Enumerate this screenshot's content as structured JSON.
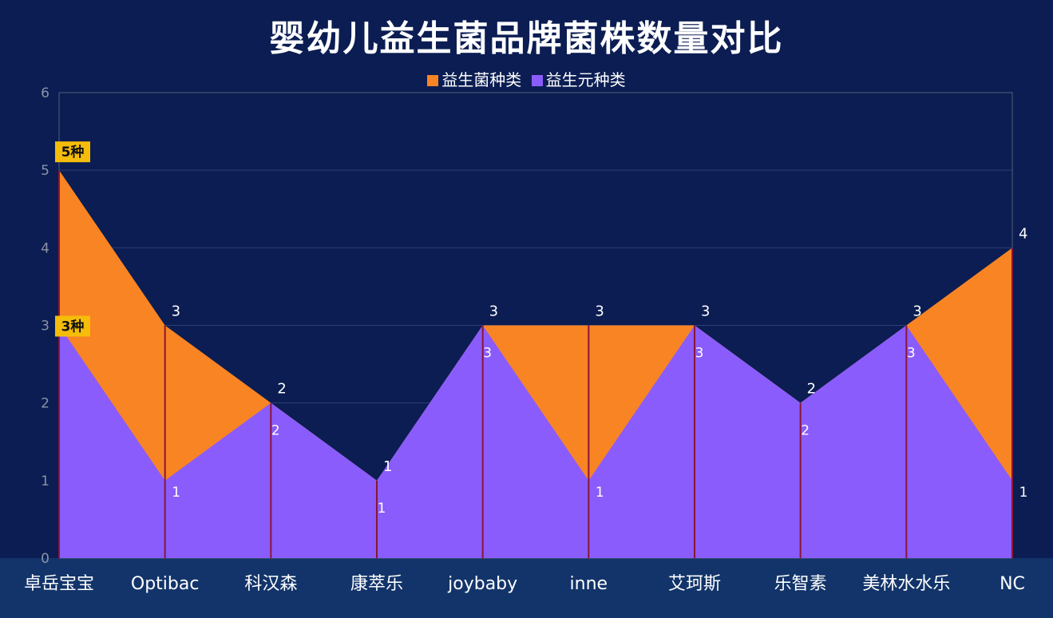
{
  "chart_data": {
    "type": "area",
    "title": "婴幼儿益生菌品牌菌株数量对比",
    "categories": [
      "卓岳宝宝",
      "Optibac",
      "科汉森",
      "康萃乐",
      "joybaby",
      "inne",
      "艾珂斯",
      "乐智素",
      "美林水水乐",
      "NC"
    ],
    "series": [
      {
        "name": "益生菌种类",
        "values": [
          5,
          3,
          2,
          1,
          3,
          3,
          3,
          2,
          3,
          4
        ],
        "color": "#f98424"
      },
      {
        "name": "益生元种类",
        "values": [
          3,
          1,
          2,
          1,
          3,
          1,
          3,
          2,
          3,
          1
        ],
        "color": "#8a5cfb"
      }
    ],
    "ylim": [
      0,
      6
    ],
    "yticks": [
      "0",
      "1",
      "2",
      "3",
      "4",
      "5",
      "6"
    ],
    "grid": true,
    "legend_position": "top-center",
    "annotations": [
      {
        "text": "5种",
        "series": 0,
        "index": 0,
        "color": "#f5bd0a"
      },
      {
        "text": "3种",
        "series": 1,
        "index": 0,
        "color": "#f5bd0a"
      }
    ]
  }
}
